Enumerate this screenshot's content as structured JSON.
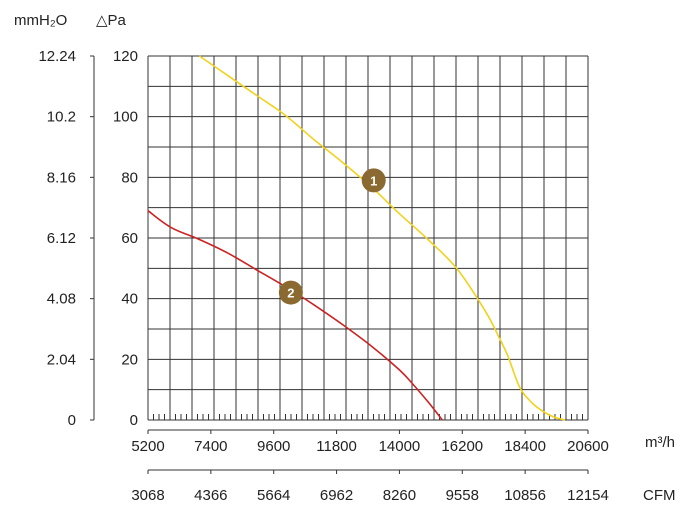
{
  "chart_data": {
    "type": "line",
    "y_units": {
      "mmh2o": "mmH₂O",
      "pa": "△Pa"
    },
    "x_units": {
      "m3h": "m³/h",
      "cfm": "CFM"
    },
    "xlim": [
      5200,
      20600
    ],
    "ylim": [
      0,
      120
    ],
    "x_ticks_m3h": [
      "5200",
      "7400",
      "9600",
      "11800",
      "14000",
      "16200",
      "18400",
      "20600"
    ],
    "x_ticks_m3h_values": [
      5200,
      7400,
      9600,
      11800,
      14000,
      16200,
      18400,
      20600
    ],
    "x_ticks_cfm": [
      "3068",
      "4366",
      "5664",
      "6962",
      "8260",
      "9558",
      "10856",
      "12154"
    ],
    "y_ticks_pa": [
      "0",
      "20",
      "40",
      "60",
      "80",
      "100",
      "120"
    ],
    "y_ticks_pa_values": [
      0,
      20,
      40,
      60,
      80,
      100,
      120
    ],
    "y_ticks_mmh2o": [
      "0",
      "2.04",
      "4.08",
      "6.12",
      "8.16",
      "10.2",
      "12.24"
    ],
    "grid": true,
    "series": [
      {
        "name": "1",
        "color": "#f2d21b",
        "x": [
          7000,
          8000,
          9000,
          10000,
          11000,
          12000,
          13000,
          14000,
          15000,
          16000,
          17000,
          17500,
          17800,
          18200,
          18600,
          19000,
          19400,
          19800
        ],
        "y": [
          120,
          113.5,
          107,
          100.5,
          92.5,
          85,
          77,
          68,
          59.5,
          50,
          36,
          27,
          21,
          11,
          6,
          3,
          1,
          0
        ],
        "label_at": [
          13100,
          79
        ]
      },
      {
        "name": "2",
        "color": "#cc2222",
        "x": [
          5200,
          6000,
          7000,
          8000,
          9000,
          10000,
          11000,
          12000,
          13000,
          14000,
          14500,
          15000,
          15500
        ],
        "y": [
          69,
          63.5,
          59.5,
          55,
          49.5,
          44,
          38,
          31.5,
          24.5,
          16.5,
          11.5,
          6,
          0
        ],
        "label_at": [
          10200,
          42
        ]
      }
    ],
    "marker_color": "#8a6a30"
  }
}
